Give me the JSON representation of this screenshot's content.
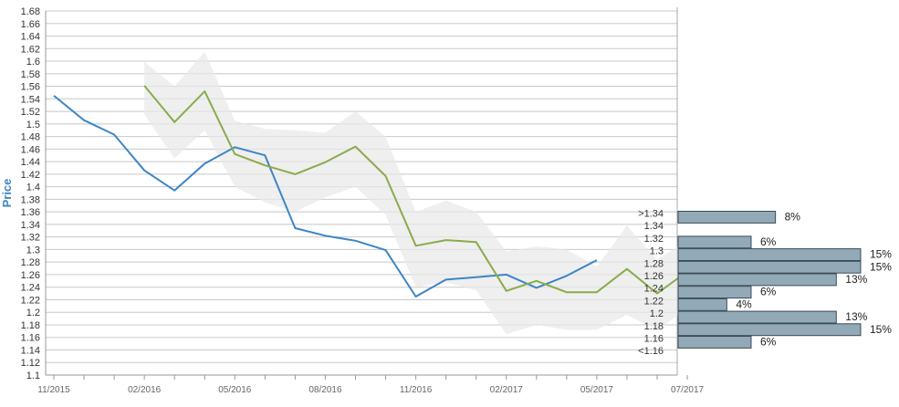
{
  "chart_data": {
    "type": "line",
    "ylabel": "Price",
    "ylim": [
      1.1,
      1.68
    ],
    "y_ticks": [
      "1.1",
      "1.12",
      "1.14",
      "1.16",
      "1.18",
      "1.2",
      "1.22",
      "1.24",
      "1.26",
      "1.28",
      "1.3",
      "1.32",
      "1.34",
      "1.36",
      "1.38",
      "1.4",
      "1.42",
      "1.44",
      "1.46",
      "1.48",
      "1.5",
      "1.52",
      "1.54",
      "1.56",
      "1.58",
      "1.6",
      "1.62",
      "1.64",
      "1.66",
      "1.68"
    ],
    "x_labels": [
      "11/2015",
      "02/2016",
      "05/2016",
      "08/2016",
      "11/2016",
      "02/2017",
      "05/2017",
      "07/2017"
    ],
    "grid": true,
    "series": [
      {
        "color": "#3d85c6",
        "points": [
          [
            0,
            1.545
          ],
          [
            1,
            1.506
          ],
          [
            2,
            1.483
          ],
          [
            3,
            1.426
          ],
          [
            4,
            1.394
          ],
          [
            5,
            1.437
          ],
          [
            6,
            1.463
          ],
          [
            7,
            1.45
          ],
          [
            8,
            1.334
          ],
          [
            9,
            1.322
          ],
          [
            10,
            1.314
          ],
          [
            11,
            1.299
          ],
          [
            12,
            1.225
          ],
          [
            13,
            1.252
          ],
          [
            14,
            1.256
          ],
          [
            15,
            1.26
          ],
          [
            16,
            1.239
          ],
          [
            17,
            1.258
          ],
          [
            18,
            1.283
          ]
        ]
      },
      {
        "color": "#8aab4b",
        "points": [
          [
            3,
            1.561
          ],
          [
            4,
            1.503
          ],
          [
            5,
            1.552
          ],
          [
            6,
            1.452
          ],
          [
            7,
            1.434
          ],
          [
            8,
            1.42
          ],
          [
            9,
            1.439
          ],
          [
            10,
            1.464
          ],
          [
            11,
            1.417
          ],
          [
            12,
            1.306
          ],
          [
            13,
            1.315
          ],
          [
            14,
            1.312
          ],
          [
            15,
            1.234
          ],
          [
            16,
            1.25
          ],
          [
            17,
            1.232
          ],
          [
            18,
            1.232
          ],
          [
            19,
            1.269
          ],
          [
            20,
            1.23
          ],
          [
            21,
            1.265
          ]
        ]
      }
    ],
    "band": {
      "color": "#e8e8e8",
      "points": [
        [
          3,
          1.599,
          1.515
        ],
        [
          4,
          1.56,
          1.445
        ],
        [
          5,
          1.615,
          1.49
        ],
        [
          6,
          1.505,
          1.4
        ],
        [
          7,
          1.492,
          1.375
        ],
        [
          8,
          1.49,
          1.36
        ],
        [
          9,
          1.486,
          1.383
        ],
        [
          10,
          1.52,
          1.4
        ],
        [
          11,
          1.48,
          1.355
        ],
        [
          12,
          1.36,
          1.24
        ],
        [
          13,
          1.378,
          1.248
        ],
        [
          14,
          1.36,
          1.235
        ],
        [
          15,
          1.297,
          1.165
        ],
        [
          16,
          1.305,
          1.18
        ],
        [
          17,
          1.3,
          1.172
        ],
        [
          18,
          1.273,
          1.172
        ],
        [
          19,
          1.338,
          1.196
        ],
        [
          20,
          1.284,
          1.172
        ],
        [
          21,
          1.315,
          1.205
        ]
      ]
    },
    "distribution": {
      "bar_color": "#92aab8",
      "bars": [
        {
          "label": ">1.34",
          "pct": 8,
          "text": "8%"
        },
        {
          "label": "1.34",
          "pct": 0,
          "text": ""
        },
        {
          "label": "1.32",
          "pct": 6,
          "text": "6%"
        },
        {
          "label": "1.3",
          "pct": 15,
          "text": "15%"
        },
        {
          "label": "1.28",
          "pct": 15,
          "text": "15%"
        },
        {
          "label": "1.26",
          "pct": 13,
          "text": "13%"
        },
        {
          "label": "1.24",
          "pct": 6,
          "text": "6%"
        },
        {
          "label": "1.22",
          "pct": 4,
          "text": "4%"
        },
        {
          "label": "1.2",
          "pct": 13,
          "text": "13%"
        },
        {
          "label": "1.18",
          "pct": 15,
          "text": "15%"
        },
        {
          "label": "1.16",
          "pct": 6,
          "text": "6%"
        },
        {
          "label": "<1.16",
          "pct": 0,
          "text": ""
        }
      ]
    }
  }
}
